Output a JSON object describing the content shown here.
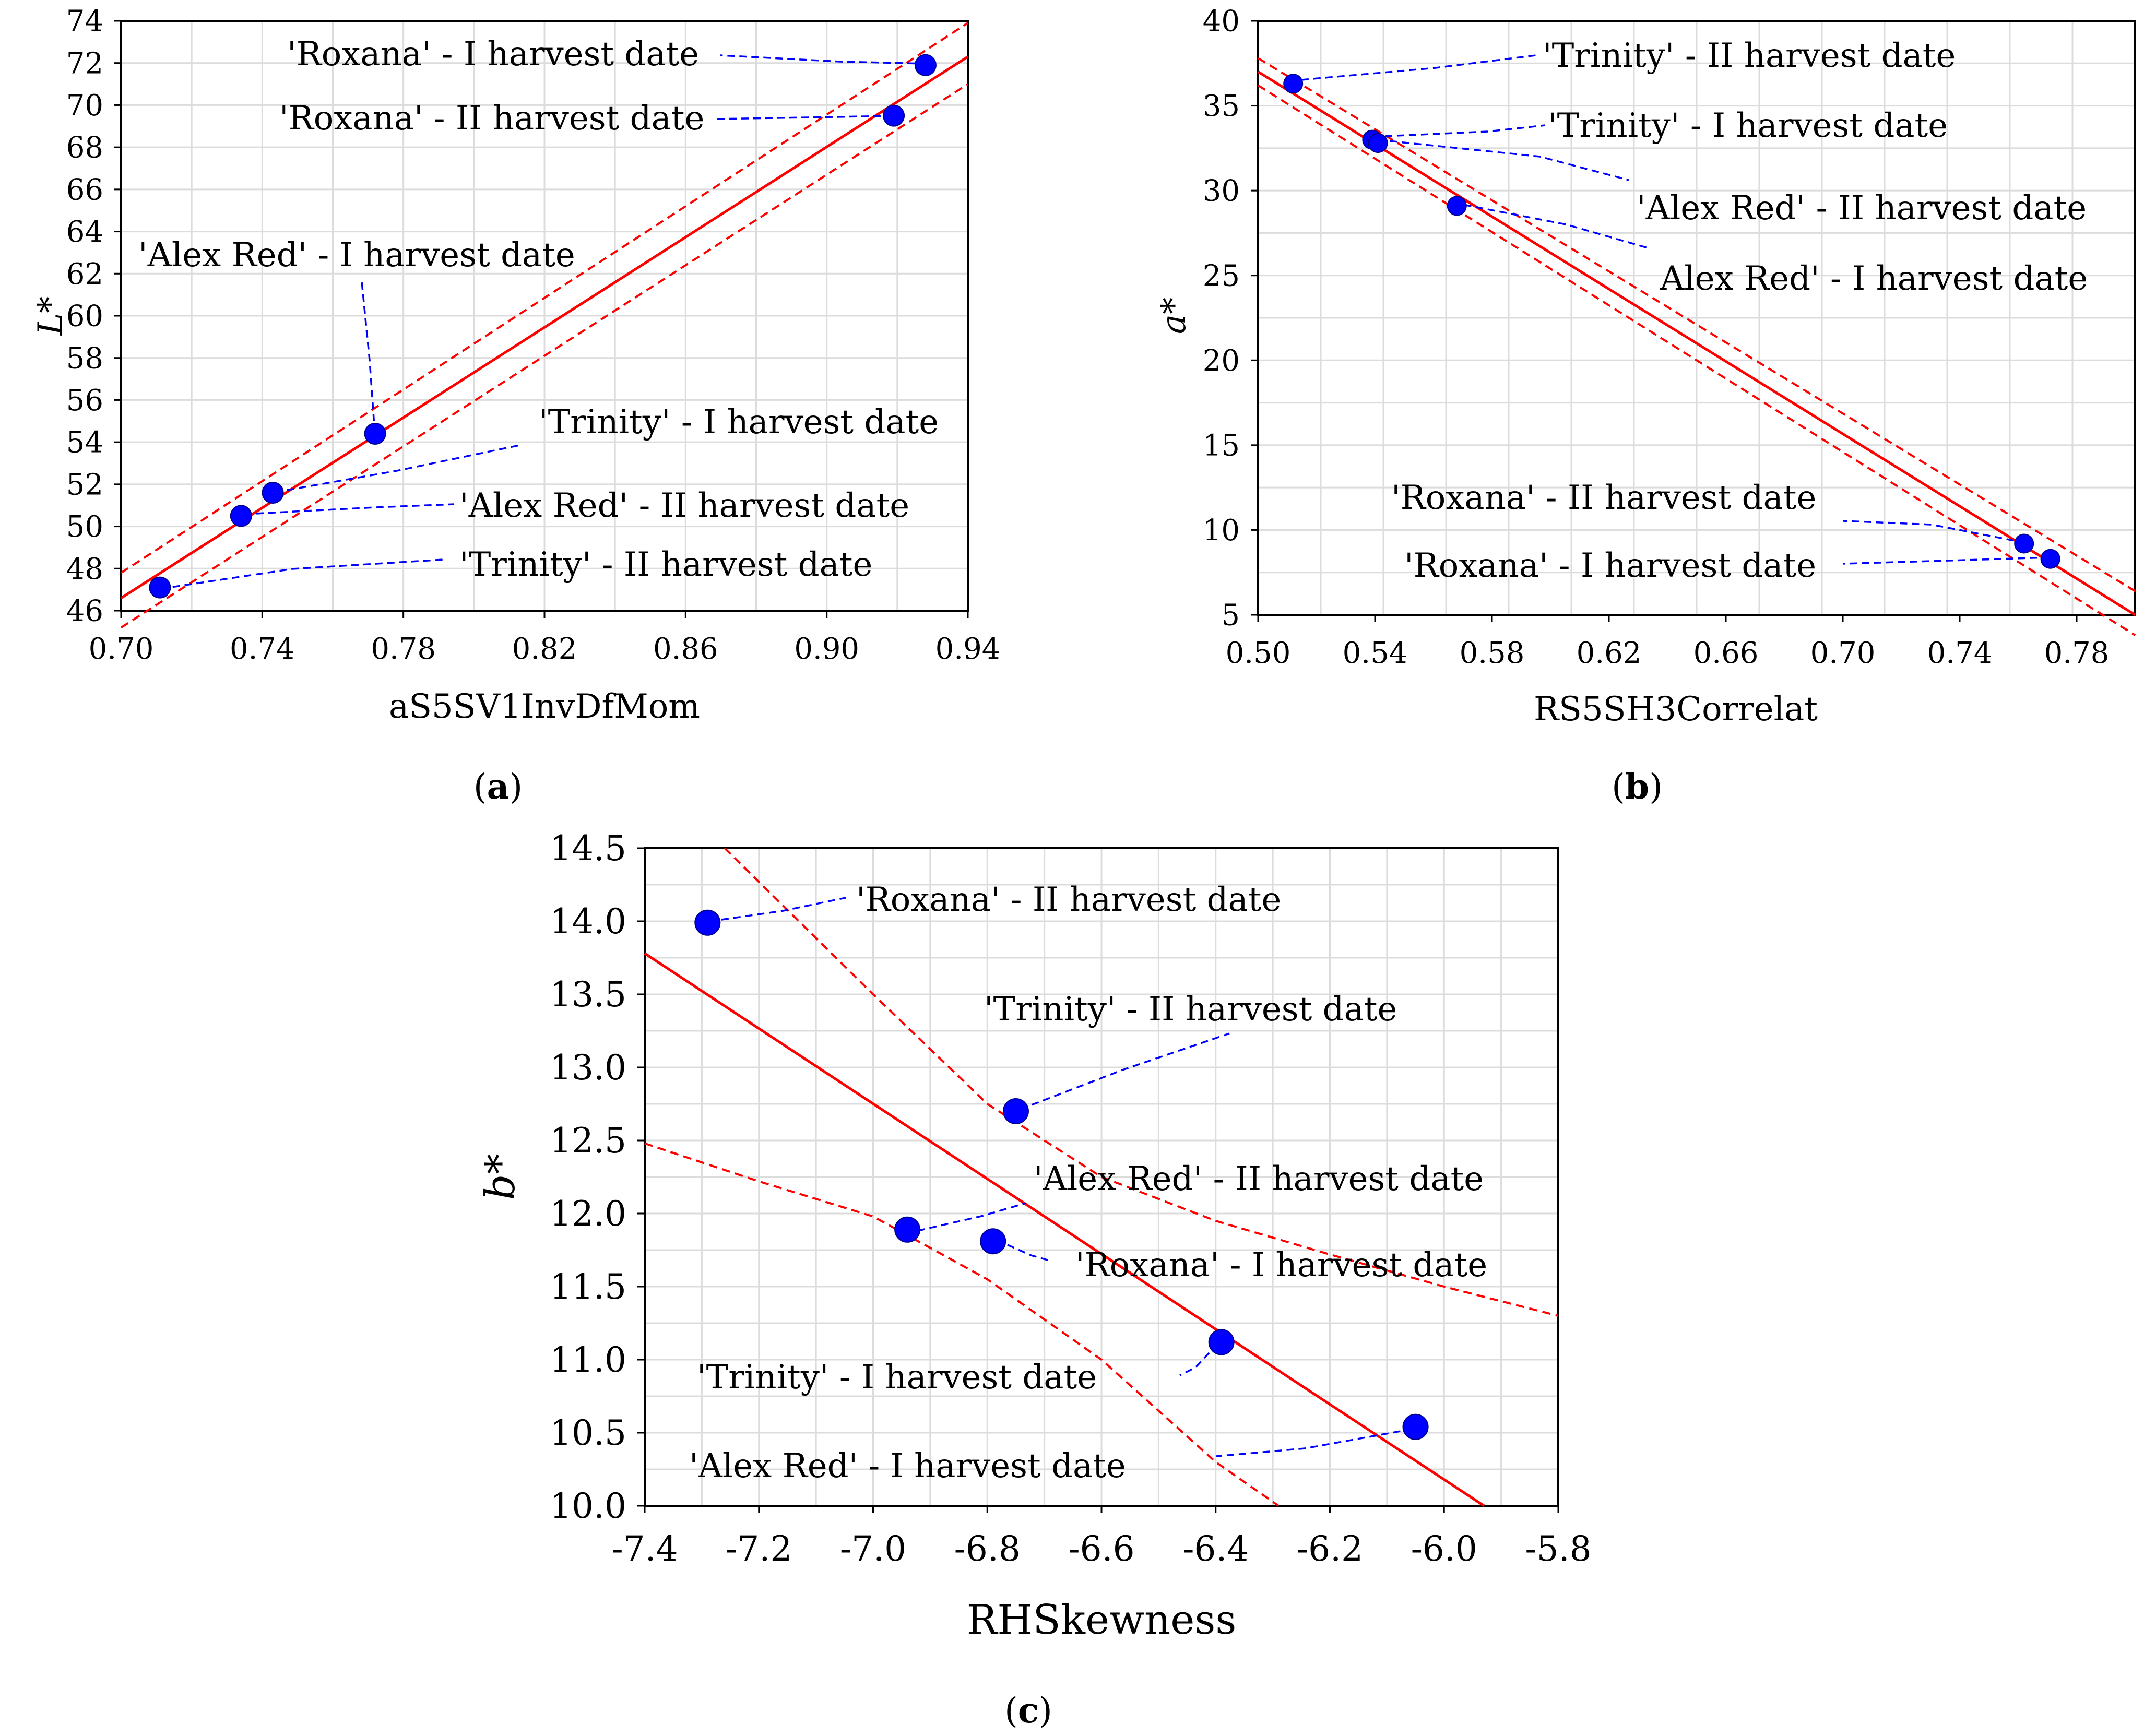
{
  "chart_data": [
    {
      "type": "scatter",
      "panel": "a",
      "caption": {
        "open": "(",
        "letter": "a",
        "close": ")"
      },
      "xlabel": "aS5SV1InvDfMom",
      "ylabel": "L*",
      "xlim": [
        0.7,
        0.94
      ],
      "ylim": [
        46,
        74
      ],
      "xticks": [
        "0.70",
        "0.74",
        "0.78",
        "0.82",
        "0.86",
        "0.90",
        "0.94"
      ],
      "yticks": [
        "46",
        "48",
        "50",
        "52",
        "54",
        "56",
        "58",
        "60",
        "62",
        "64",
        "66",
        "68",
        "70",
        "72",
        "74"
      ],
      "fit": {
        "x": [
          0.7,
          0.94
        ],
        "y": [
          46.6,
          72.3
        ]
      },
      "ci_upper": {
        "x": [
          0.7,
          0.94
        ],
        "y": [
          47.8,
          73.9
        ]
      },
      "ci_lower": {
        "x": [
          0.7,
          0.94
        ],
        "y": [
          45.2,
          71.0
        ]
      },
      "points": [
        {
          "label": "'Trinity' - II harvest date",
          "x": 0.711,
          "y": 47.1
        },
        {
          "label": "'Alex Red' - II harvest date",
          "x": 0.734,
          "y": 50.5
        },
        {
          "label": "'Trinity' - I harvest date",
          "x": 0.743,
          "y": 51.6
        },
        {
          "label": "'Alex Red' - I harvest date",
          "x": 0.772,
          "y": 54.4
        },
        {
          "label": "'Roxana' - II harvest date",
          "x": 0.919,
          "y": 69.5
        },
        {
          "label": "'Roxana' - I harvest date",
          "x": 0.928,
          "y": 71.9
        }
      ]
    },
    {
      "type": "scatter",
      "panel": "b",
      "caption": {
        "open": "(",
        "letter": "b",
        "close": ")"
      },
      "xlabel": "RS5SH3Correlat",
      "ylabel": "a*",
      "xlim": [
        0.5,
        0.8
      ],
      "ylim": [
        5,
        40
      ],
      "xticks": [
        "0.50",
        "0.54",
        "0.58",
        "0.62",
        "0.66",
        "0.70",
        "0.74",
        "0.78"
      ],
      "yticks": [
        "5",
        "10",
        "15",
        "20",
        "25",
        "30",
        "35",
        "40"
      ],
      "fit": {
        "x": [
          0.5,
          0.8
        ],
        "y": [
          37.0,
          5.0
        ]
      },
      "ci_upper": {
        "x": [
          0.5,
          0.8
        ],
        "y": [
          37.8,
          6.4
        ]
      },
      "ci_lower": {
        "x": [
          0.5,
          0.8
        ],
        "y": [
          36.2,
          3.8
        ]
      },
      "points": [
        {
          "label": "'Trinity' - II harvest date",
          "x": 0.512,
          "y": 36.3
        },
        {
          "label": "'Trinity' - I harvest date",
          "x": 0.539,
          "y": 33.0
        },
        {
          "label": "'Alex Red' - II harvest date",
          "x": 0.541,
          "y": 32.8
        },
        {
          "label": "Alex Red' - I harvest date",
          "x": 0.568,
          "y": 29.1
        },
        {
          "label": "'Roxana' - II harvest date",
          "x": 0.762,
          "y": 9.2
        },
        {
          "label": "'Roxana' - I harvest date",
          "x": 0.771,
          "y": 8.3
        }
      ]
    },
    {
      "type": "scatter",
      "panel": "c",
      "caption": {
        "open": "(",
        "letter": "c",
        "close": ")"
      },
      "xlabel": "RHSkewness",
      "ylabel": "b*",
      "xlim": [
        -7.4,
        -5.8
      ],
      "ylim": [
        10.0,
        14.5
      ],
      "xticks": [
        "-7.4",
        "-7.2",
        "-7.0",
        "-6.8",
        "-6.6",
        "-6.4",
        "-6.2",
        "-6.0",
        "-5.8"
      ],
      "yticks": [
        "10.0",
        "10.5",
        "11.0",
        "11.5",
        "12.0",
        "12.5",
        "13.0",
        "13.5",
        "14.0",
        "14.5"
      ],
      "fit": {
        "x": [
          -7.4,
          -5.93
        ],
        "y": [
          13.78,
          10.0
        ]
      },
      "ci_upper": {
        "x": [
          -7.26,
          -7.0,
          -6.8,
          -6.6,
          -6.4,
          -6.2,
          -6.0,
          -5.8
        ],
        "y": [
          14.5,
          13.5,
          12.75,
          12.25,
          11.95,
          11.72,
          11.5,
          11.3
        ]
      },
      "ci_lower": {
        "x": [
          -7.4,
          -7.2,
          -7.0,
          -6.8,
          -6.6,
          -6.5,
          -6.4,
          -6.29
        ],
        "y": [
          12.48,
          12.22,
          11.98,
          11.55,
          11.0,
          10.65,
          10.3,
          10.0
        ]
      },
      "points": [
        {
          "label": "'Roxana' - II harvest date",
          "x": -7.29,
          "y": 13.99
        },
        {
          "label": "'Trinity' - II harvest date",
          "x": -6.75,
          "y": 12.7
        },
        {
          "label": "'Alex Red' - II harvest date",
          "x": -6.94,
          "y": 11.89
        },
        {
          "label": "'Roxana' - I harvest date",
          "x": -6.79,
          "y": 11.81
        },
        {
          "label": "'Trinity' - I harvest date",
          "x": -6.39,
          "y": 11.12
        },
        {
          "label": "'Alex Red' - I harvest date",
          "x": -6.05,
          "y": 10.54
        }
      ]
    }
  ]
}
